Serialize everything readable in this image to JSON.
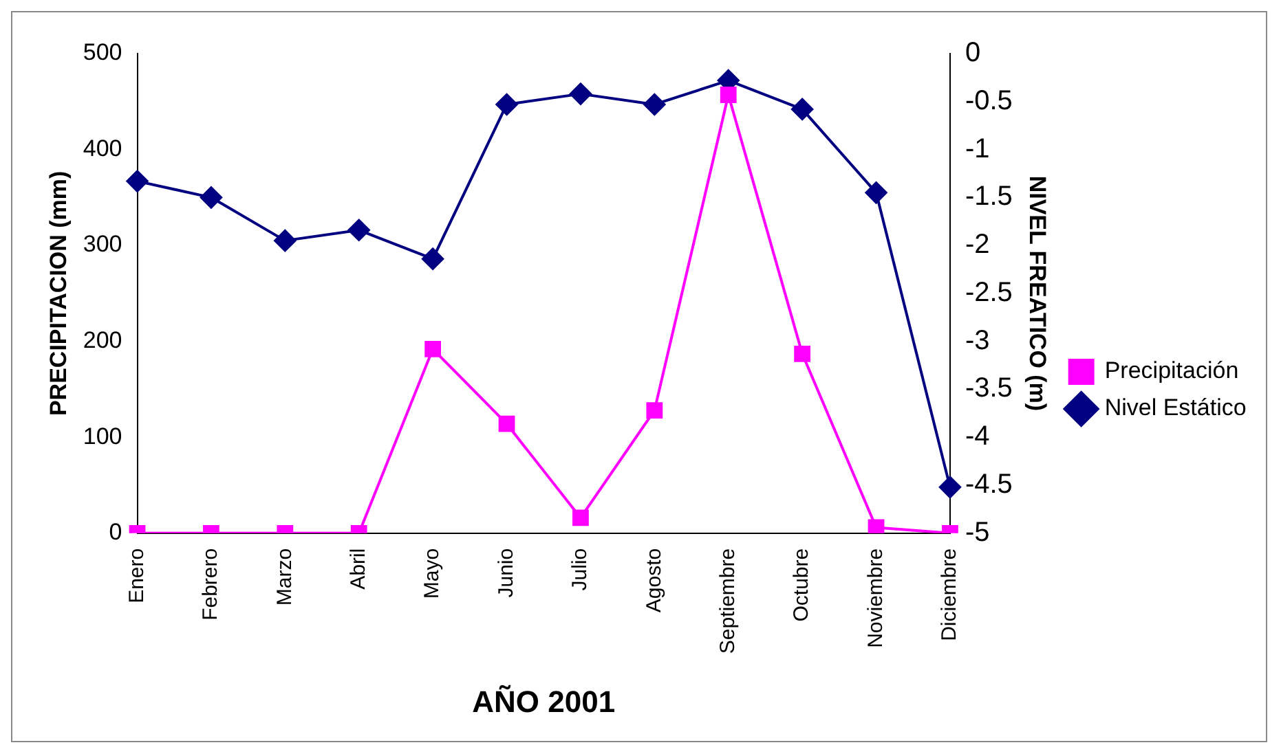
{
  "chart_data": {
    "type": "line",
    "xlabel": "AÑO 2001",
    "ylabel": "PRECIPITACION (mm)",
    "y2label": "NIVEL FREATICO (m)",
    "categories": [
      "Enero",
      "Febrero",
      "Marzo",
      "Abril",
      "Mayo",
      "Junio",
      "Julio",
      "Agosto",
      "Septiembre",
      "Octubre",
      "Noviembre",
      "Diciembre"
    ],
    "series": [
      {
        "name": "Precipitación",
        "color": "#ff00ff",
        "marker": "square",
        "values": [
          0,
          0,
          0,
          0,
          192,
          114,
          16,
          128,
          457,
          187,
          6,
          0
        ]
      },
      {
        "name": "Nivel Estático",
        "color": "#000080",
        "marker": "diamond",
        "axis": "y2",
        "values": [
          -1.33,
          -1.5,
          -1.95,
          -1.84,
          -2.14,
          -0.53,
          -0.42,
          -0.53,
          -0.28,
          -0.58,
          -1.45,
          -4.52
        ]
      }
    ],
    "ylim": [
      0,
      500
    ],
    "yticks": [
      0,
      100,
      200,
      300,
      400,
      500
    ],
    "y2lim": [
      -5,
      0
    ],
    "y2ticks": [
      -5,
      -4.5,
      -4,
      -3.5,
      -3,
      -2.5,
      -2,
      -1.5,
      -1,
      -0.5,
      0
    ],
    "grid": false,
    "legend": "right"
  }
}
